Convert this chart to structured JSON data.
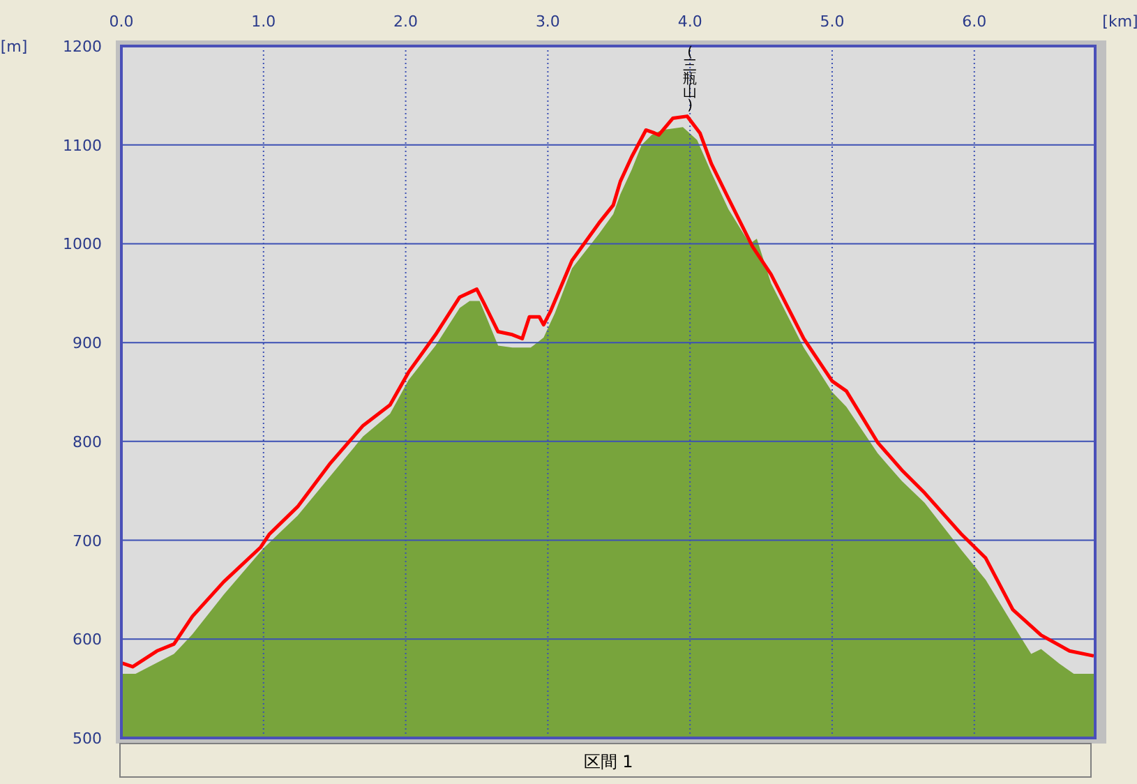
{
  "chart_data": {
    "type": "area",
    "xlabel": "[km]",
    "ylabel": "[m]",
    "xlim": [
      0,
      6.85
    ],
    "ylim": [
      500,
      1200
    ],
    "xticks": [
      {
        "value": 0,
        "label": "0.0"
      },
      {
        "value": 1,
        "label": "1.0"
      },
      {
        "value": 2,
        "label": "2.0"
      },
      {
        "value": 3,
        "label": "3.0"
      },
      {
        "value": 4,
        "label": "4.0"
      },
      {
        "value": 5,
        "label": "5.0"
      },
      {
        "value": 6,
        "label": "6.0"
      }
    ],
    "yticks": [
      500,
      600,
      700,
      800,
      900,
      1000,
      1100,
      1200
    ],
    "grid": true,
    "series": [
      {
        "color": "#78a43c",
        "x": [
          0,
          0.1,
          0.37,
          0.5,
          0.72,
          1.0,
          1.24,
          1.47,
          1.7,
          1.89,
          2.02,
          2.21,
          2.38,
          2.45,
          2.52,
          2.57,
          2.65,
          2.75,
          2.88,
          2.97,
          3.05,
          3.17,
          3.36,
          3.46,
          3.51,
          3.59,
          3.66,
          3.73,
          3.8,
          3.95,
          4.05,
          4.15,
          4.27,
          4.42,
          4.47,
          4.57,
          4.8,
          5.0,
          5.1,
          5.32,
          5.49,
          5.65,
          5.91,
          6.08,
          6.27,
          6.4,
          6.47,
          6.6,
          6.7,
          6.84
        ],
        "values": [
          565,
          565,
          585,
          605,
          645,
          692,
          725,
          765,
          805,
          828,
          862,
          897,
          935,
          942,
          942,
          925,
          897,
          895,
          895,
          905,
          930,
          975,
          1010,
          1030,
          1050,
          1075,
          1100,
          1110,
          1115,
          1118,
          1105,
          1072,
          1035,
          1000,
          1005,
          960,
          895,
          850,
          835,
          788,
          760,
          738,
          690,
          660,
          615,
          585,
          590,
          575,
          565,
          565
        ]
      },
      {
        "type": "line",
        "color": "#ff0000",
        "x": [
          0,
          0.08,
          0.25,
          0.37,
          0.5,
          0.72,
          0.98,
          1.04,
          1.24,
          1.47,
          1.7,
          1.89,
          2.02,
          2.21,
          2.38,
          2.5,
          2.55,
          2.65,
          2.75,
          2.82,
          2.87,
          2.94,
          2.97,
          3.02,
          3.17,
          3.36,
          3.46,
          3.51,
          3.59,
          3.69,
          3.75,
          3.78,
          3.88,
          3.98,
          4.07,
          4.15,
          4.27,
          4.44,
          4.57,
          4.8,
          5.0,
          5.1,
          5.32,
          5.49,
          5.65,
          5.91,
          6.08,
          6.27,
          6.47,
          6.67,
          6.84
        ],
        "values": [
          576,
          572,
          588,
          595,
          623,
          658,
          693,
          706,
          734,
          778,
          816,
          837,
          870,
          908,
          946,
          954,
          940,
          911,
          908,
          904,
          926,
          926,
          918,
          932,
          983,
          1021,
          1039,
          1063,
          1088,
          1115,
          1112,
          1110,
          1127,
          1129,
          1112,
          1081,
          1046,
          997,
          969,
          904,
          861,
          851,
          799,
          771,
          748,
          706,
          682,
          630,
          604,
          588,
          583
        ]
      }
    ],
    "annotations": [
      {
        "text": "(三瓶山)",
        "x": 4.0,
        "y": 1129
      },
      "区間 1"
    ]
  }
}
